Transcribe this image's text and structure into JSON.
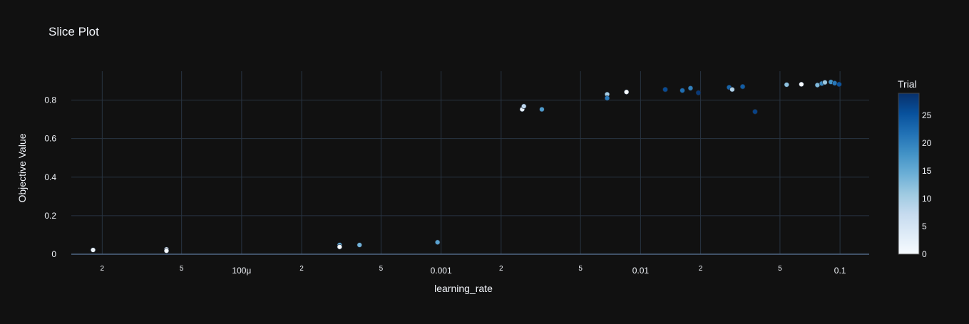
{
  "chart_data": {
    "type": "scatter",
    "title": "Slice Plot",
    "xlabel": "learning_rate",
    "ylabel": "Objective Value",
    "x_scale": "log",
    "x_range": [
      1.4e-05,
      0.14
    ],
    "x_ticks": [
      {
        "value": 2e-05,
        "label": "2",
        "minor": true
      },
      {
        "value": 5e-05,
        "label": "5",
        "minor": true
      },
      {
        "value": 0.0001,
        "label": "100μ",
        "minor": false
      },
      {
        "value": 0.0002,
        "label": "2",
        "minor": true
      },
      {
        "value": 0.0005,
        "label": "5",
        "minor": true
      },
      {
        "value": 0.001,
        "label": "0.001",
        "minor": false
      },
      {
        "value": 0.002,
        "label": "2",
        "minor": true
      },
      {
        "value": 0.005,
        "label": "5",
        "minor": true
      },
      {
        "value": 0.01,
        "label": "0.01",
        "minor": false
      },
      {
        "value": 0.02,
        "label": "2",
        "minor": true
      },
      {
        "value": 0.05,
        "label": "5",
        "minor": true
      },
      {
        "value": 0.1,
        "label": "0.1",
        "minor": false
      }
    ],
    "y_range": [
      0,
      0.95
    ],
    "y_ticks": [
      {
        "value": 0,
        "label": "0"
      },
      {
        "value": 0.2,
        "label": "0.2"
      },
      {
        "value": 0.4,
        "label": "0.4"
      },
      {
        "value": 0.6,
        "label": "0.6"
      },
      {
        "value": 0.8,
        "label": "0.8"
      }
    ],
    "grid": true,
    "colorbar": {
      "title": "Trial",
      "min": 0,
      "max": 29,
      "ticks": [
        {
          "value": 0,
          "label": "0"
        },
        {
          "value": 5,
          "label": "5"
        },
        {
          "value": 10,
          "label": "10"
        },
        {
          "value": 15,
          "label": "15"
        },
        {
          "value": 20,
          "label": "20"
        },
        {
          "value": 25,
          "label": "25"
        }
      ],
      "colorscale": [
        "#f7fbff",
        "#deebf7",
        "#c6dbef",
        "#9ecae1",
        "#6baed6",
        "#4292c6",
        "#2171b5",
        "#08519c",
        "#08306b"
      ]
    },
    "points": [
      {
        "x": 1.8e-05,
        "y": 0.022,
        "trial": 1
      },
      {
        "x": 4.2e-05,
        "y": 0.025,
        "trial": 3
      },
      {
        "x": 4.2e-05,
        "y": 0.018,
        "trial": 0
      },
      {
        "x": 0.00031,
        "y": 0.048,
        "trial": 15
      },
      {
        "x": 0.00031,
        "y": 0.038,
        "trial": 0
      },
      {
        "x": 0.00039,
        "y": 0.048,
        "trial": 14
      },
      {
        "x": 0.00096,
        "y": 0.062,
        "trial": 16
      },
      {
        "x": 0.00255,
        "y": 0.752,
        "trial": 2
      },
      {
        "x": 0.0026,
        "y": 0.768,
        "trial": 8
      },
      {
        "x": 0.0032,
        "y": 0.752,
        "trial": 17
      },
      {
        "x": 0.0068,
        "y": 0.83,
        "trial": 10
      },
      {
        "x": 0.0068,
        "y": 0.81,
        "trial": 21
      },
      {
        "x": 0.0085,
        "y": 0.842,
        "trial": 0
      },
      {
        "x": 0.0133,
        "y": 0.855,
        "trial": 26
      },
      {
        "x": 0.0162,
        "y": 0.85,
        "trial": 22
      },
      {
        "x": 0.0178,
        "y": 0.862,
        "trial": 20
      },
      {
        "x": 0.0195,
        "y": 0.838,
        "trial": 28
      },
      {
        "x": 0.0278,
        "y": 0.866,
        "trial": 23
      },
      {
        "x": 0.0288,
        "y": 0.855,
        "trial": 9
      },
      {
        "x": 0.0325,
        "y": 0.87,
        "trial": 24
      },
      {
        "x": 0.0375,
        "y": 0.74,
        "trial": 27
      },
      {
        "x": 0.054,
        "y": 0.88,
        "trial": 12
      },
      {
        "x": 0.064,
        "y": 0.882,
        "trial": 0
      },
      {
        "x": 0.077,
        "y": 0.878,
        "trial": 13
      },
      {
        "x": 0.081,
        "y": 0.886,
        "trial": 19
      },
      {
        "x": 0.084,
        "y": 0.892,
        "trial": 11
      },
      {
        "x": 0.09,
        "y": 0.894,
        "trial": 18
      },
      {
        "x": 0.094,
        "y": 0.888,
        "trial": 21
      },
      {
        "x": 0.099,
        "y": 0.882,
        "trial": 25
      }
    ]
  }
}
